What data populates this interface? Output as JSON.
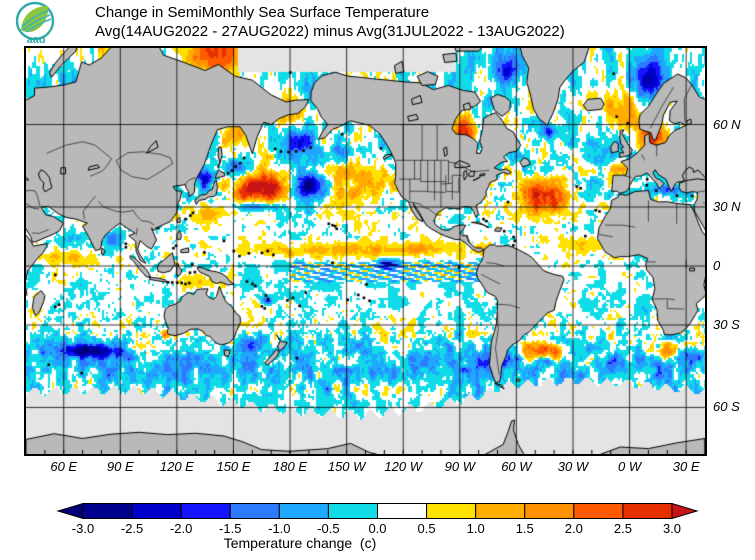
{
  "ui": {
    "logo": {
      "text": "aau",
      "ring_color": "#2fa9a9",
      "leaf_color": "#8cc63f"
    },
    "title": {
      "line1": "Change in SemiMonthly Sea Surface Temperature",
      "line2": "Avg(14AUG2022 - 27AUG2022) minus Avg(31JUL2022 - 13AUG2022)"
    },
    "map_labels": {
      "lat": [
        {
          "text": "60 N",
          "lat": 60
        },
        {
          "text": "30 N",
          "lat": 30
        },
        {
          "text": "0",
          "lat": 0
        },
        {
          "text": "30 S",
          "lat": -30
        },
        {
          "text": "60 S",
          "lat": -60
        }
      ],
      "lon": [
        {
          "text": "60 E",
          "lon": 60
        },
        {
          "text": "90 E",
          "lon": 90
        },
        {
          "text": "120 E",
          "lon": 120
        },
        {
          "text": "150 E",
          "lon": 150
        },
        {
          "text": "180 E",
          "lon": 180
        },
        {
          "text": "150 W",
          "lon": 210
        },
        {
          "text": "120 W",
          "lon": 240
        },
        {
          "text": "90 W",
          "lon": 270
        },
        {
          "text": "60 W",
          "lon": 300
        },
        {
          "text": "30 W",
          "lon": 330
        },
        {
          "text": "0 W",
          "lon": 360
        },
        {
          "text": "30 E",
          "lon": 390
        }
      ]
    },
    "colorbar": {
      "label": "Temperature change  (c)",
      "ticks": [
        "-3.0",
        "-2.5",
        "-2.0",
        "-1.5",
        "-1.0",
        "-0.5",
        "0.0",
        "0.5",
        "1.0",
        "1.5",
        "2.0",
        "2.5",
        "3.0"
      ]
    }
  },
  "chart_data": {
    "type": "heatmap",
    "title": "Change in SemiMonthly Sea Surface Temperature",
    "subtitle": "Avg(14AUG2022 - 27AUG2022) minus Avg(31JUL2022 - 13AUG2022)",
    "variable": "Temperature change (c)",
    "projection": {
      "type": "mercator",
      "lon_min": 40,
      "lon_max": 400,
      "lat_top": 75.1,
      "lat_bottom": -70.4
    },
    "grid_step_deg": 30,
    "lat_gridlines": [
      60,
      30,
      0,
      -30,
      -60
    ],
    "lon_gridlines": [
      60,
      90,
      120,
      150,
      180,
      210,
      240,
      270,
      300,
      330,
      360,
      390
    ],
    "palette": {
      "levels": [
        -3.0,
        -2.5,
        -2.0,
        -1.5,
        -1.0,
        -0.5,
        0.0,
        0.5,
        1.0,
        1.5,
        2.0,
        2.5,
        3.0
      ],
      "colors": [
        "#000078",
        "#00008E",
        "#0000CD",
        "#1414FF",
        "#2E7AFF",
        "#1FA8FF",
        "#0FDCE6",
        "#FFFFFF",
        "#FFE100",
        "#FFAE00",
        "#FF9100",
        "#FF5A00",
        "#E63000",
        "#C81414"
      ]
    },
    "land_color": "#b9b9b9",
    "ice_color": "#e4e4e4",
    "ocean_color": "#ffffff",
    "grid_color": "#000000",
    "anomaly_features": [
      {
        "name": "nw_pacific_warm_blob",
        "lon": 167,
        "lat": 38.5,
        "sx": 10,
        "sy": 4.5,
        "amp": 3.4
      },
      {
        "name": "nw_pacific_west_ext",
        "lon": 156,
        "lat": 35.5,
        "sx": 6,
        "sy": 3,
        "amp": 1.3
      },
      {
        "name": "ne_pacific_warm",
        "lon": 219,
        "lat": 41,
        "sx": 13,
        "sy": 5,
        "amp": 1.5
      },
      {
        "name": "ne_pacific_south",
        "lon": 207,
        "lat": 30,
        "sx": 8,
        "sy": 4,
        "amp": 0.7
      },
      {
        "name": "laptev_warm",
        "lon": 140,
        "lat": 74,
        "sx": 9,
        "sy": 2.2,
        "amp": 2.4
      },
      {
        "name": "kara_warm",
        "lon": 93,
        "lat": 74,
        "sx": 10,
        "sy": 2.2,
        "amp": 1.6
      },
      {
        "name": "anadyr_warm",
        "lon": 179,
        "lat": 63.5,
        "sx": 5,
        "sy": 2,
        "amp": 1.5
      },
      {
        "name": "okhotsk_warm",
        "lon": 150,
        "lat": 57.5,
        "sx": 5,
        "sy": 2,
        "amp": 1.4
      },
      {
        "name": "hudson_bay_warm",
        "lon": 272,
        "lat": 57.5,
        "sx": 4.5,
        "sy": 3,
        "amp": 2.8
      },
      {
        "name": "atlantic_warm_blob",
        "lon": 315,
        "lat": 34,
        "sx": 9,
        "sy": 5,
        "amp": 2.6
      },
      {
        "name": "atlantic_nw_ext",
        "lon": 310,
        "lat": 39,
        "sx": 5,
        "sy": 3,
        "amp": 1.2
      },
      {
        "name": "nova_scotia_warm",
        "lon": 287,
        "lat": 41,
        "sx": 4,
        "sy": 2.5,
        "amp": 1.0
      },
      {
        "name": "iceland_norway_warm",
        "lon": 355,
        "lat": 64,
        "sx": 7,
        "sy": 3,
        "amp": 1.2
      },
      {
        "name": "biscay_warm",
        "lon": 356,
        "lat": 45.5,
        "sx": 4,
        "sy": 2,
        "amp": 1.1
      },
      {
        "name": "baltic_north_sea_warm",
        "lon": 12,
        "lat": 56,
        "sx": 5.5,
        "sy": 3.5,
        "amp": 2.3
      },
      {
        "name": "black_sea_warm",
        "lon": 34,
        "lat": 43,
        "sx": 4,
        "sy": 1.6,
        "amp": 0.9
      },
      {
        "name": "itcz_band_warm",
        "lon": 205,
        "lat": 8.5,
        "sx": 38,
        "sy": 3,
        "amp": 1.1
      },
      {
        "name": "itcz_east_warm",
        "lon": 250,
        "lat": 9,
        "sx": 12,
        "sy": 2.5,
        "amp": 0.9
      },
      {
        "name": "eq_indian_warm",
        "lon": 63,
        "lat": 4.5,
        "sx": 9,
        "sy": 3,
        "amp": 1.0
      },
      {
        "name": "south_of_japan_warm",
        "lon": 134,
        "lat": 26,
        "sx": 7,
        "sy": 3,
        "amp": 1.0
      },
      {
        "name": "arafura_warm",
        "lon": 134,
        "lat": -9,
        "sx": 8,
        "sy": 2.6,
        "amp": 1.0
      },
      {
        "name": "s_atlantic_warm",
        "lon": 310,
        "lat": -41,
        "sx": 6,
        "sy": 2.5,
        "amp": 2.5
      },
      {
        "name": "s_atlantic_warm2",
        "lon": 322,
        "lat": -42.5,
        "sx": 4,
        "sy": 2,
        "amp": 1.7
      },
      {
        "name": "s_africa_warm",
        "lon": 20,
        "lat": -41.5,
        "sx": 6,
        "sy": 2.5,
        "amp": 2.3
      },
      {
        "name": "wa_coast_warm_speck",
        "lon": 113.5,
        "lat": -34.5,
        "sx": 1.5,
        "sy": 1.2,
        "amp": 1.8
      },
      {
        "name": "s_indian_warm_streak",
        "lon": 100,
        "lat": -39.5,
        "sx": 12,
        "sy": 1.8,
        "amp": 0.7
      },
      {
        "name": "trop_atlantic_warm",
        "lon": 335,
        "lat": 12,
        "sx": 10,
        "sy": 3.5,
        "amp": 0.9
      },
      {
        "name": "panama_warm",
        "lon": 284,
        "lat": 8,
        "sx": 6,
        "sy": 2,
        "amp": 1.1
      },
      {
        "name": "np_cold_blob",
        "lon": 190,
        "lat": 39,
        "sx": 6.5,
        "sy": 4,
        "amp": -3.0
      },
      {
        "name": "kuroshio_cold_streak",
        "lon": 163,
        "lat": 30.5,
        "sx": 8,
        "sy": 1.6,
        "amp": -2.0
      },
      {
        "name": "japan_sea_cold",
        "lon": 134.5,
        "lat": 41.5,
        "sx": 3.5,
        "sy": 2.5,
        "amp": -1.8
      },
      {
        "name": "kuril_cold",
        "lon": 151.5,
        "lat": 46.5,
        "sx": 5,
        "sy": 2.2,
        "amp": -1.7
      },
      {
        "name": "bering_cold",
        "lon": 184,
        "lat": 55,
        "sx": 5.5,
        "sy": 2.5,
        "amp": -2.4
      },
      {
        "name": "chukchi_cold",
        "lon": 193,
        "lat": 69,
        "sx": 6,
        "sy": 2,
        "amp": -1.3
      },
      {
        "name": "gulf_alaska_cold_arc",
        "lon": 210,
        "lat": 52.5,
        "sx": 8,
        "sy": 1.8,
        "amp": -1.0
      },
      {
        "name": "eq_pacific_cold_spot",
        "lon": 232,
        "lat": 1,
        "sx": 4,
        "sy": 2,
        "amp": -2.6
      },
      {
        "name": "norwegian_cold",
        "lon": 10,
        "lat": 70,
        "sx": 5,
        "sy": 2.5,
        "amp": -2.6
      },
      {
        "name": "greenland_tip_cold",
        "lon": 317,
        "lat": 58,
        "sx": 2.5,
        "sy": 1.5,
        "amp": -2.2
      },
      {
        "name": "baffin_cold",
        "lon": 295,
        "lat": 72,
        "sx": 5,
        "sy": 2,
        "amp": -1.8
      },
      {
        "name": "uk_west_cold",
        "lon": 352,
        "lat": 53,
        "sx": 4,
        "sy": 2.5,
        "amp": -0.9
      },
      {
        "name": "mediterranean_cold",
        "lon": 18,
        "lat": 37.5,
        "sx": 5,
        "sy": 1.6,
        "amp": -1.5
      },
      {
        "name": "bengal_cold",
        "lon": 87,
        "lat": 14,
        "sx": 4,
        "sy": 3,
        "amp": -1.2
      },
      {
        "name": "arabian_cold",
        "lon": 63,
        "lat": 14,
        "sx": 5,
        "sy": 3,
        "amp": -0.9
      },
      {
        "name": "s_indian_cold_streak",
        "lon": 75,
        "lat": -41,
        "sx": 12,
        "sy": 2,
        "amp": -2.8
      },
      {
        "name": "tasman_cold",
        "lon": 158,
        "lat": -38,
        "sx": 4,
        "sy": 2.5,
        "amp": -1.0
      },
      {
        "name": "coral_cold_speck",
        "lon": 168,
        "lat": -18,
        "sx": 2,
        "sy": 1.5,
        "amp": -2.0
      },
      {
        "name": "chile_cold",
        "lon": 285,
        "lat": -45,
        "sx": 7,
        "sy": 3,
        "amp": -1.1
      },
      {
        "name": "argentine_cold_speck",
        "lon": 316,
        "lat": -45,
        "sx": 2.5,
        "sy": 1.5,
        "amp": -2.0
      },
      {
        "name": "agulhas_cold",
        "lon": 30,
        "lat": -43,
        "sx": 4,
        "sy": 2,
        "amp": -1.5
      },
      {
        "name": "benguela_cold",
        "lon": 9,
        "lat": -22,
        "sx": 2.5,
        "sy": 5,
        "amp": -0.8
      }
    ],
    "anomaly_bands": [
      {
        "name": "southern_ocean_cool_band",
        "lat": -47,
        "sy": 6,
        "amp": -0.55,
        "lon0": 40,
        "lon1": 400
      },
      {
        "name": "s_pacific_cool_band",
        "lat": -8,
        "sy": 7,
        "amp": -0.2,
        "lon0": 150,
        "lon1": 290
      }
    ],
    "tiw_stripes": {
      "lon0": 180,
      "lon1": 285,
      "lat0": -9,
      "lat1": 2,
      "amp": 0.8,
      "kx": 0.55,
      "ky": 2.2,
      "bias": -0.15
    },
    "noise": {
      "amp1": 0.45,
      "scale1": 5,
      "amp2": 0.33,
      "scale2": 2.1,
      "amp3": 0.22,
      "scale3": 1.05,
      "bias_subtropics": 0.15
    },
    "ice_edge_south": [
      [
        40,
        -55.5
      ],
      [
        100,
        -55
      ],
      [
        140,
        -58
      ],
      [
        180,
        -61
      ],
      [
        220,
        -62
      ],
      [
        250,
        -60
      ],
      [
        280,
        -57
      ],
      [
        295,
        -53.5
      ],
      [
        330,
        -52
      ],
      [
        360,
        -53
      ],
      [
        400,
        -55.5
      ]
    ],
    "arctic_mask": {
      "lat": 71.5,
      "lon_min": 152,
      "lon_max": 268
    }
  }
}
